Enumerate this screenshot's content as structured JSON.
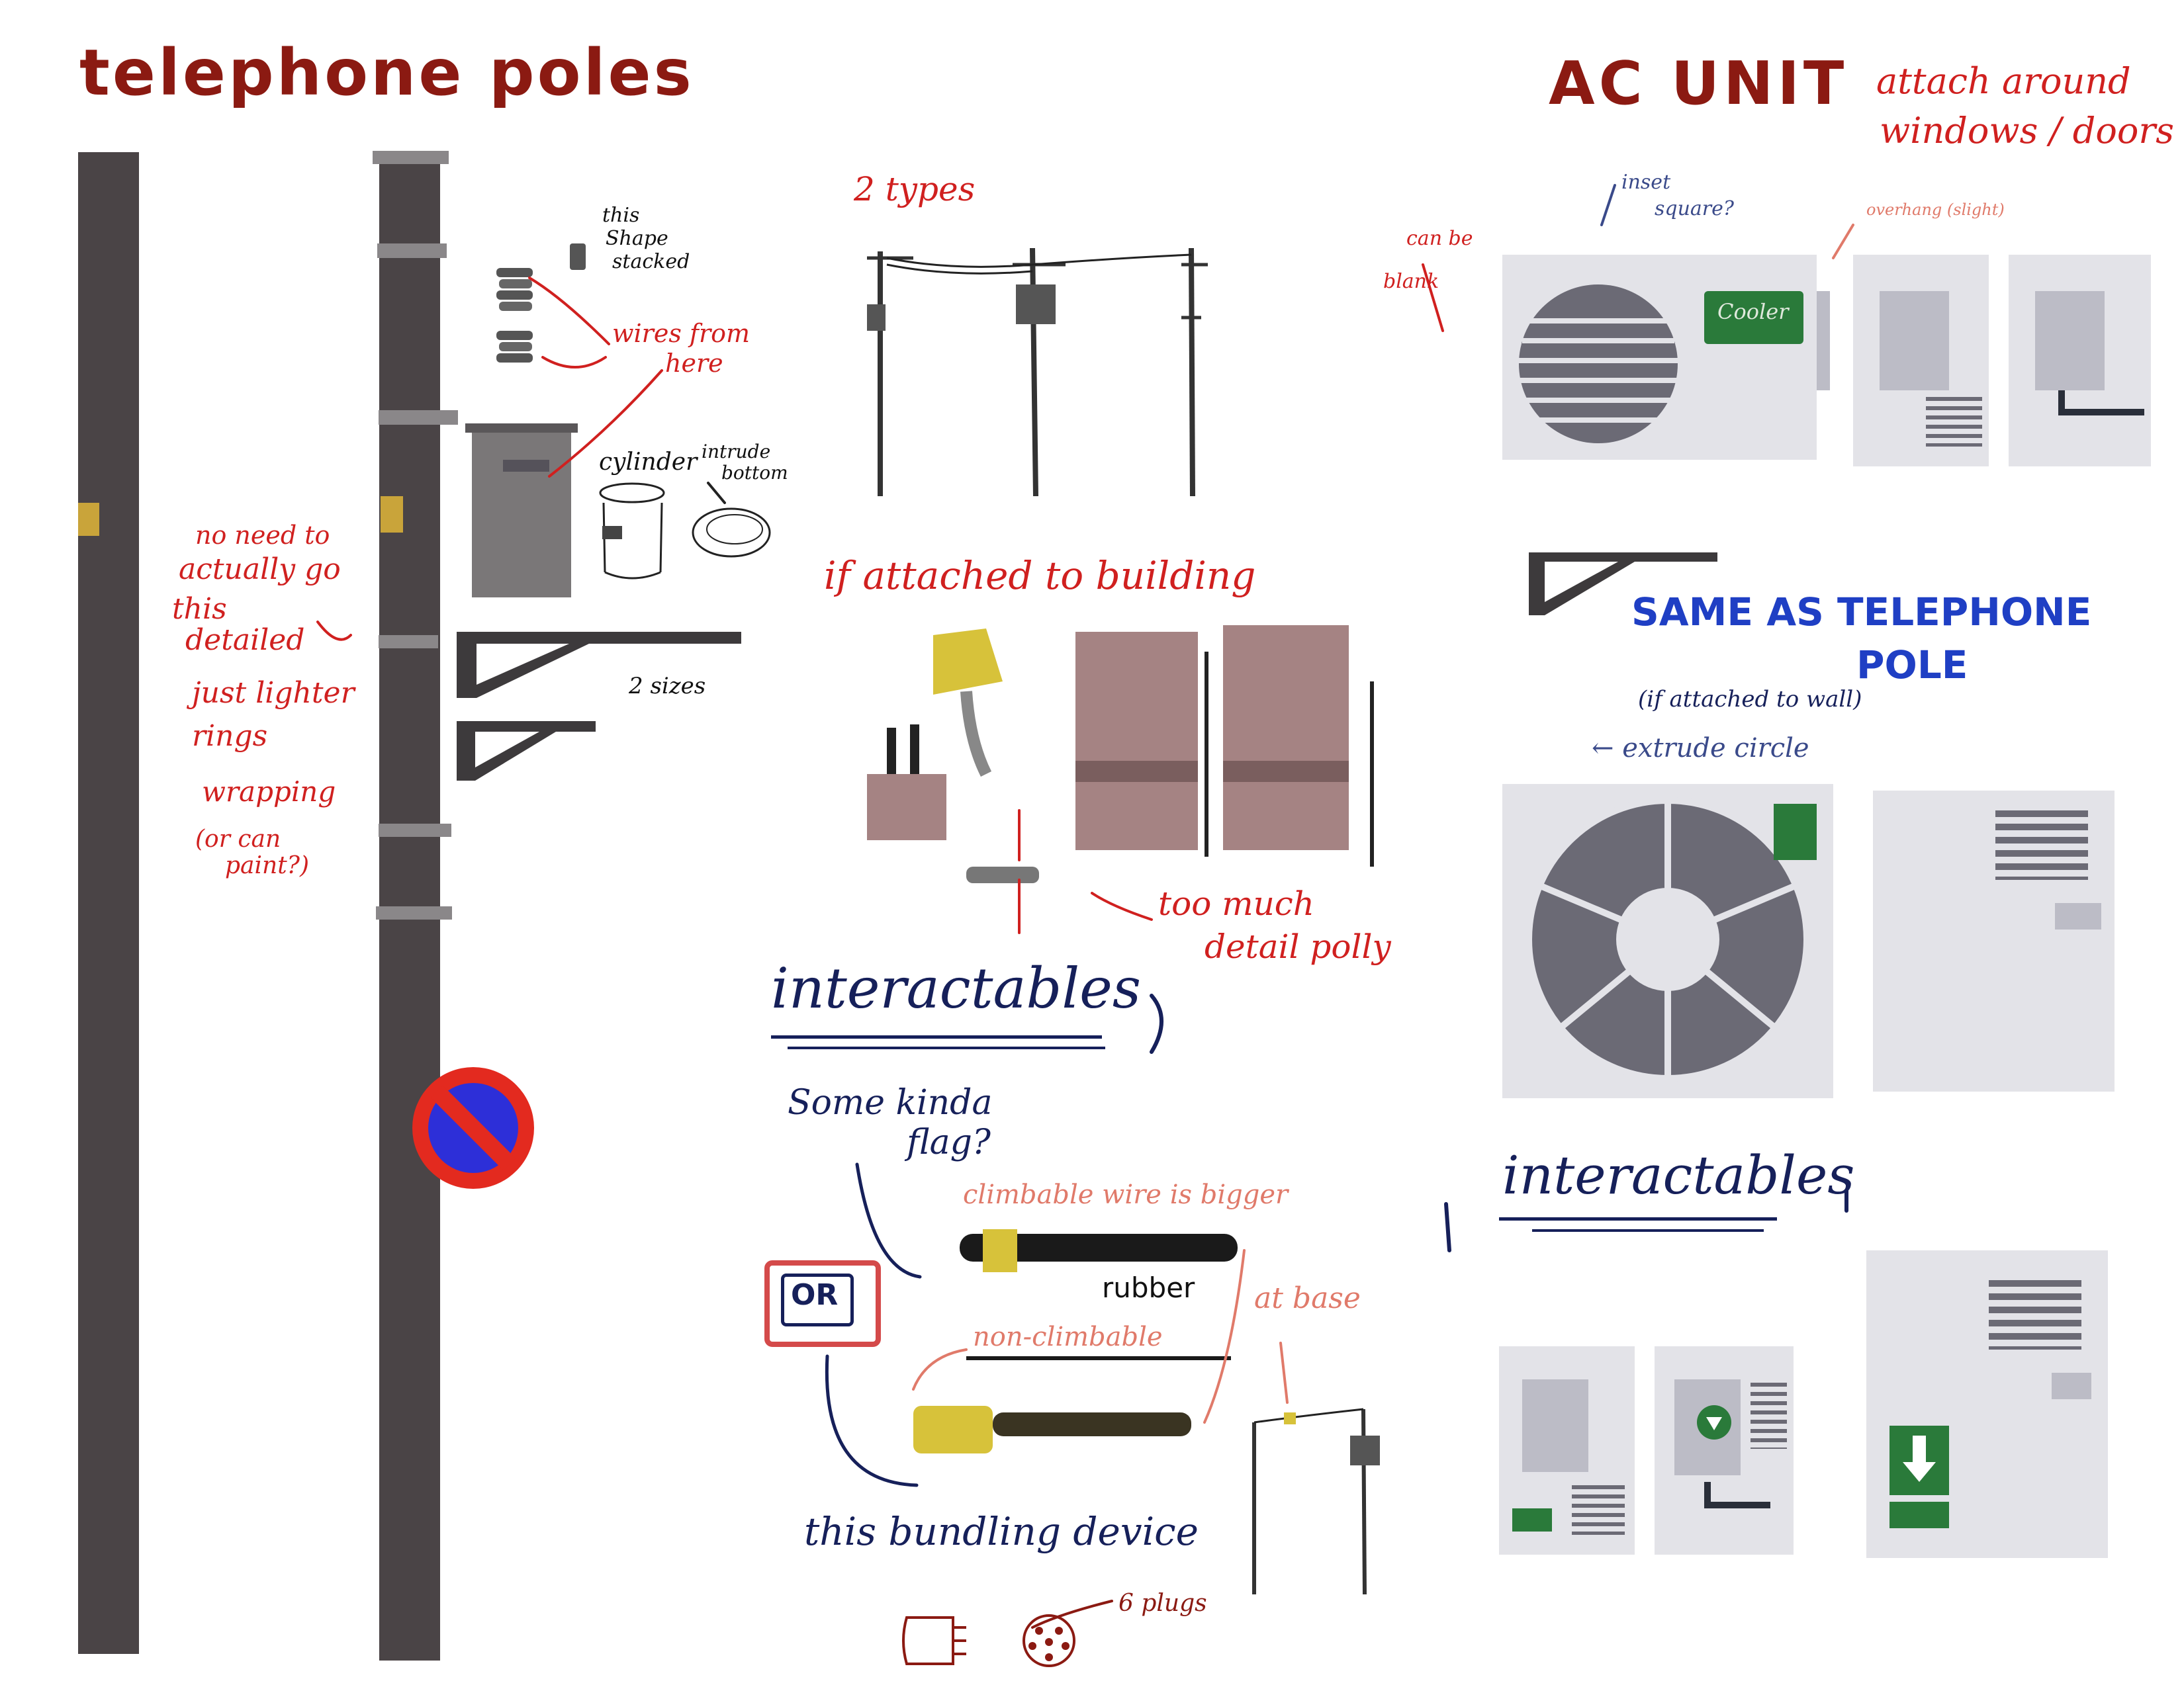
{
  "headings": {
    "telephone_poles": "telephone poles",
    "ac_unit": "AC UNIT",
    "two_types": "2 types",
    "if_attached": "if attached to building",
    "interactables_left": "interactables",
    "interactables_right": "interactables",
    "same_as_pole_1": "SAME AS TELEPHONE",
    "same_as_pole_2": "POLE"
  },
  "notes": {
    "attach_1": "attach around",
    "attach_2": "windows / doors",
    "this_shape_1": "this",
    "this_shape_2": "Shape",
    "this_shape_3": "stacked",
    "wires_from_1": "wires from",
    "wires_from_2": "here",
    "cylinder": "cylinder",
    "intrude_1": "intrude",
    "intrude_2": "bottom",
    "no_need_1": "no need to",
    "no_need_2": "actually go",
    "no_need_3": "this",
    "no_need_4": "detailed",
    "just_lighter_1": "just lighter",
    "just_lighter_2": "rings",
    "just_lighter_3": "wrapping",
    "or_paint_1": "(or can",
    "or_paint_2": "paint?)",
    "two_sizes": "2 sizes",
    "inset_1": "inset",
    "inset_2": "square?",
    "can_be_1": "can be",
    "can_be_2": "blank",
    "overhang": "overhang (slight)",
    "if_wall": "(if attached to wall)",
    "extrude": "← extrude circle",
    "too_much_1": "too much",
    "too_much_2": "detail polly",
    "some_flag_1": "Some kinda",
    "some_flag_2": "flag?",
    "climbable": "climbable wire is bigger",
    "rubber": "rubber",
    "at_base": "at base",
    "or_label": "OR",
    "non_climbable": "non-climbable",
    "bundling": "this bundling device",
    "six_plugs": "6 plugs",
    "ac_brand": "Cooler"
  },
  "colors": {
    "pole": "#4a4446",
    "pole_band": "#8a8789",
    "tag": "#c9a43a",
    "box": "#7a7778",
    "ac_body": "#e3e3e8",
    "ac_grey": "#bcbcc6",
    "fan": "#65636f",
    "green": "#2a7a3a",
    "yellow": "#d7c23a",
    "brick": "#a58383",
    "sign_red": "#e32a1f",
    "sign_blue": "#2d2fd8"
  }
}
